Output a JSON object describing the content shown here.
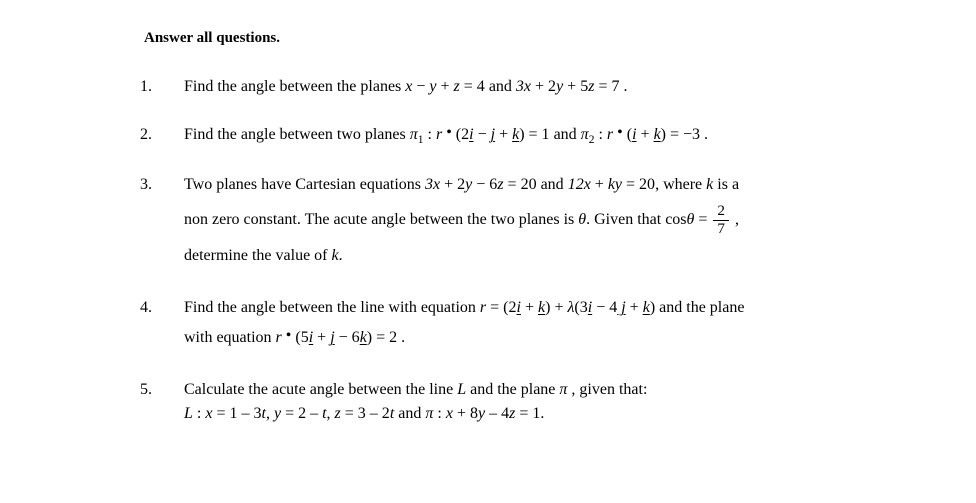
{
  "typography": {
    "font_family": "Times New Roman",
    "body_fontsize": 16,
    "color": "#000000",
    "background": "#ffffff"
  },
  "header_fragment": "Answer all questions.",
  "questions": [
    {
      "num": "1.",
      "text_plain": "Find the angle between the planes x − y + z = 4 and 3x + 2y + 5z = 7.",
      "pre": "Find the angle between the planes ",
      "eq1_lhs_x": "x",
      "eq1_sign1": " − ",
      "eq1_lhs_y": "y",
      "eq1_sign2": " + ",
      "eq1_lhs_z": "z",
      "eq1_eq": " = 4",
      "mid": " and ",
      "eq2_3x": "3x",
      "eq2_s1": " + 2",
      "eq2_y": "y",
      "eq2_s2": " + 5",
      "eq2_z": "z",
      "eq2_eq": " = 7",
      "post": " ."
    },
    {
      "num": "2.",
      "text_plain": "Find the angle between two planes π₁ : r • (2i − j + k) = 1 and π₂ : r • (i + k) = −3.",
      "pre": "Find the angle between two planes ",
      "pi1": "π",
      "pi1sub": "1",
      "colon1": " : ",
      "r1": "r",
      "dot1": " • ",
      "lp1": "(2",
      "i1": "i",
      "s1a": " − ",
      "j1": "j",
      "s1b": " + ",
      "k1": "k",
      "rp1": ") = 1",
      "mid": "  and  ",
      "pi2": "π",
      "pi2sub": "2",
      "colon2": " : ",
      "r2": "r",
      "dot2": " • ",
      "lp2": "(",
      "i2": "i",
      "s2a": " + ",
      "k2": "k",
      "rp2": ") = −3",
      "post": " ."
    },
    {
      "num": "3.",
      "text_plain": "Two planes have Cartesian equations 3x + 2y − 6z = 20 and 12x + ky = 20, where k is a non zero constant. The acute angle between the two planes is θ. Given that cosθ = 2/7, determine the value of k.",
      "l1_pre": "Two planes have Cartesian equations ",
      "l1_3x": "3x",
      "l1_s1": " + 2",
      "l1_y": "y",
      "l1_s2": " − 6",
      "l1_z": "z",
      "l1_eq1": " = 20",
      "l1_mid": " and ",
      "l1_12x": "12x",
      "l1_s3": " + ",
      "l1_ky": "ky",
      "l1_eq2": " = 20",
      "l1_post1": ", where ",
      "l1_k": "k",
      "l1_post2": " is a",
      "l2_pre": "non zero constant. The acute angle between the two planes is ",
      "l2_theta": "θ",
      "l2_post1": ". Given that ",
      "l2_cos": "cos",
      "l2_theta2": "θ",
      "l2_eq": " = ",
      "l2_frac_num": "2",
      "l2_frac_den": "7",
      "l2_comma": " ,",
      "l3_pre": "determine the value of ",
      "l3_k": "k",
      "l3_post": "."
    },
    {
      "num": "4.",
      "text_plain": "Find the angle between the line with equation r = (2i + k) + λ(3i − 4j + k) and the plane with equation r • (5i + j − 6k) = 2.",
      "l1_pre": "Find the angle between the line with equation ",
      "l1_r": "r",
      "l1_eq": " = (2",
      "l1_i1": "i",
      "l1_s1": " + ",
      "l1_k1": "k",
      "l1_rp1": ") + ",
      "l1_lambda": "λ",
      "l1_lp2": "(3",
      "l1_i2": "i",
      "l1_s2": " − 4",
      "l1_j2": " j",
      "l1_s3": " + ",
      "l1_k2": "k",
      "l1_rp2": ")",
      "l1_post": " and the plane",
      "l2_pre": "with equation ",
      "l2_r": "r",
      "l2_dot": " • ",
      "l2_lp": "(5",
      "l2_i": "i",
      "l2_s1": " + ",
      "l2_j": " j",
      "l2_s2": " − 6",
      "l2_k": "k",
      "l2_rp": ") = 2",
      "l2_post": " ."
    },
    {
      "num": "5.",
      "text_plain": "Calculate the acute angle between the line L and the plane π, given that: L : x = 1 − 3t, y = 2 − t, z = 3 − 2t and π : x + 8y − 4z = 1.",
      "l1_pre": "Calculate the acute angle between the line ",
      "l1_L": "L",
      "l1_mid": " and the plane ",
      "l1_pi": "π",
      "l1_post": " , given that:",
      "l2_L": " L",
      "l2_colon": " : ",
      "l2_x": "x",
      "l2_eq1": " = 1 – 3",
      "l2_t1": "t",
      "l2_c1": ",  ",
      "l2_y": "y",
      "l2_eq2": " = 2 – ",
      "l2_t2": "t",
      "l2_c2": ",  ",
      "l2_z": "z",
      "l2_eq3": " = 3 – 2",
      "l2_t3": "t",
      "l2_and": "  and  ",
      "l2_pi": "π",
      "l2_colon2": " : ",
      "l2_px": "x",
      "l2_s1": " + 8",
      "l2_py": "y",
      "l2_s2": " – 4",
      "l2_pz": "z",
      "l2_peq": " = 1",
      "l2_post": "."
    }
  ]
}
